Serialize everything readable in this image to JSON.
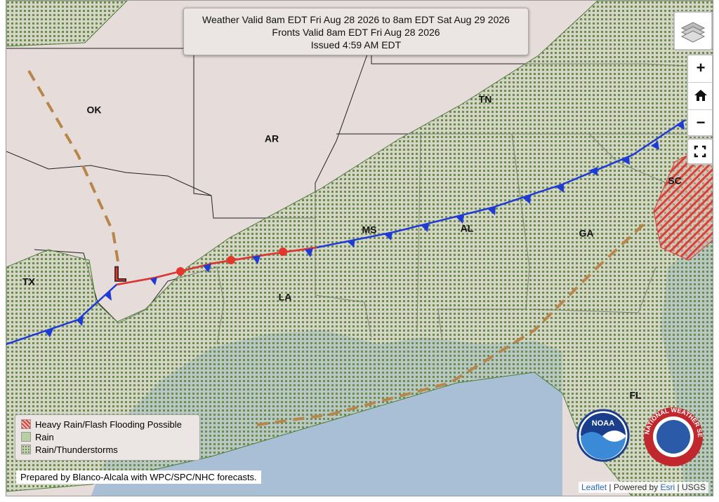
{
  "header": {
    "lines": [
      "Weather Valid 8am EDT Fri Aug 28 2026 to 8am EDT Sat Aug 29 2026",
      "Fronts Valid 8am EDT Fri Aug 28 2026",
      "Issued 4:59 AM EDT"
    ]
  },
  "controls": {
    "zoom_in": "+",
    "zoom_out": "−"
  },
  "map": {
    "states": [
      "OK",
      "AR",
      "TN",
      "TX",
      "MS",
      "AL",
      "GA",
      "SC",
      "LA",
      "FL"
    ],
    "low": "L"
  },
  "legend": {
    "items": [
      "Heavy Rain/Flash Flooding Possible",
      "Rain",
      "Rain/Thunderstorms"
    ]
  },
  "credit": "Prepared by Blanco-Alcala with WPC/SPC/NHC forecasts.",
  "logos": {
    "noaa": "NOAA",
    "nws": "NATIONAL WEATHER SERVICE"
  },
  "attribution": {
    "leaflet": "Leaflet",
    "sep1": " | Powered by ",
    "esri": "Esri",
    "sep2": " | USGS"
  }
}
